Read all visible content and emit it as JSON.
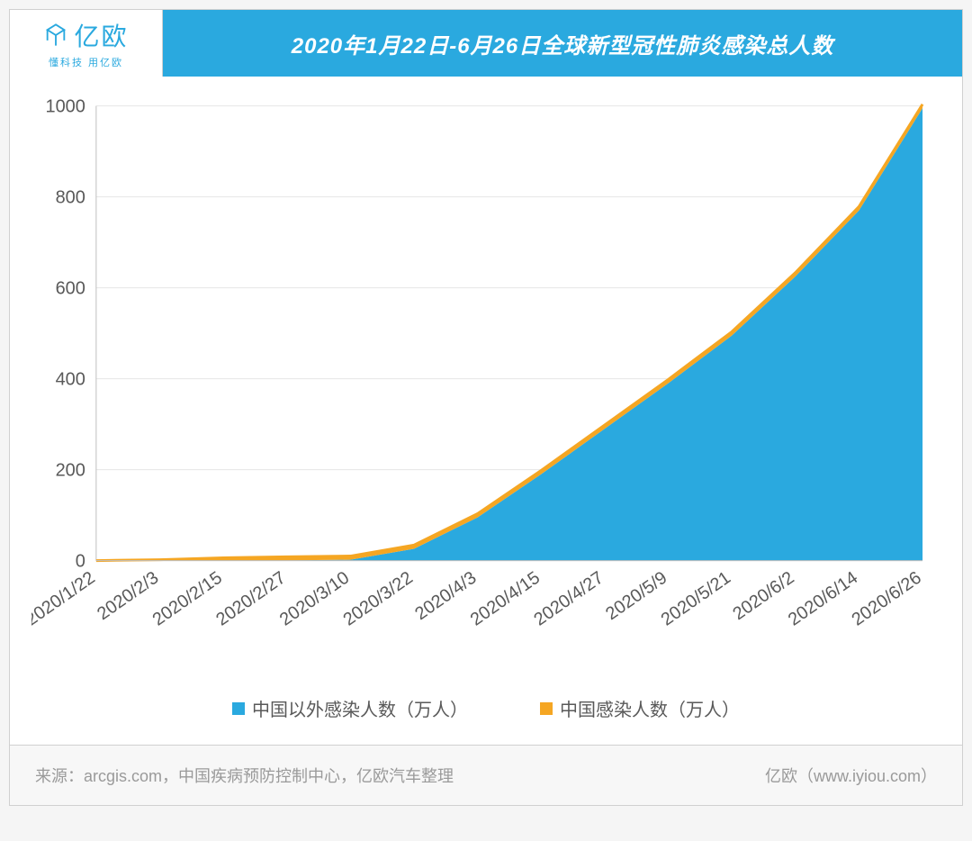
{
  "logo": {
    "name": "亿欧",
    "subtitle": "懂科技 用亿欧",
    "color": "#2aa9df"
  },
  "title": "2020年1月22日-6月26日全球新型冠性肺炎感染总人数",
  "chart": {
    "type": "area_stacked",
    "background_color": "#ffffff",
    "grid_color": "#e6e6e6",
    "axis_text_color": "#595959",
    "axis_fontsize": 20,
    "xlabel_rotation": -35,
    "x_labels": [
      "2020/1/22",
      "2020/2/3",
      "2020/2/15",
      "2020/2/27",
      "2020/3/10",
      "2020/3/22",
      "2020/4/3",
      "2020/4/15",
      "2020/4/27",
      "2020/5/9",
      "2020/5/21",
      "2020/6/2",
      "2020/6/14",
      "2020/6/26"
    ],
    "ylim": [
      0,
      1000
    ],
    "ytick_step": 200,
    "series": [
      {
        "name": "中国以外感染人数（万人）",
        "fill_color": "#2aa9df",
        "values": [
          0,
          0,
          0.1,
          0.4,
          2,
          26,
          95,
          190,
          290,
          390,
          495,
          625,
          770,
          995
        ]
      },
      {
        "name": "中国感染人数（万人）",
        "fill_color": "#f5a623",
        "values": [
          0.05,
          2,
          6,
          8,
          8,
          8.2,
          8.3,
          8.3,
          8.4,
          8.4,
          8.4,
          8.4,
          8.5,
          8.5
        ]
      }
    ],
    "top_line_color": "#f5a623",
    "top_line_width": 3
  },
  "legend_items": [
    {
      "label": "中国以外感染人数（万人）",
      "color": "#2aa9df"
    },
    {
      "label": "中国感染人数（万人）",
      "color": "#f5a623"
    }
  ],
  "footer": {
    "source": "来源：arcgis.com，中国疾病预防控制中心，亿欧汽车整理",
    "brand": "亿欧（www.iyiou.com）"
  }
}
